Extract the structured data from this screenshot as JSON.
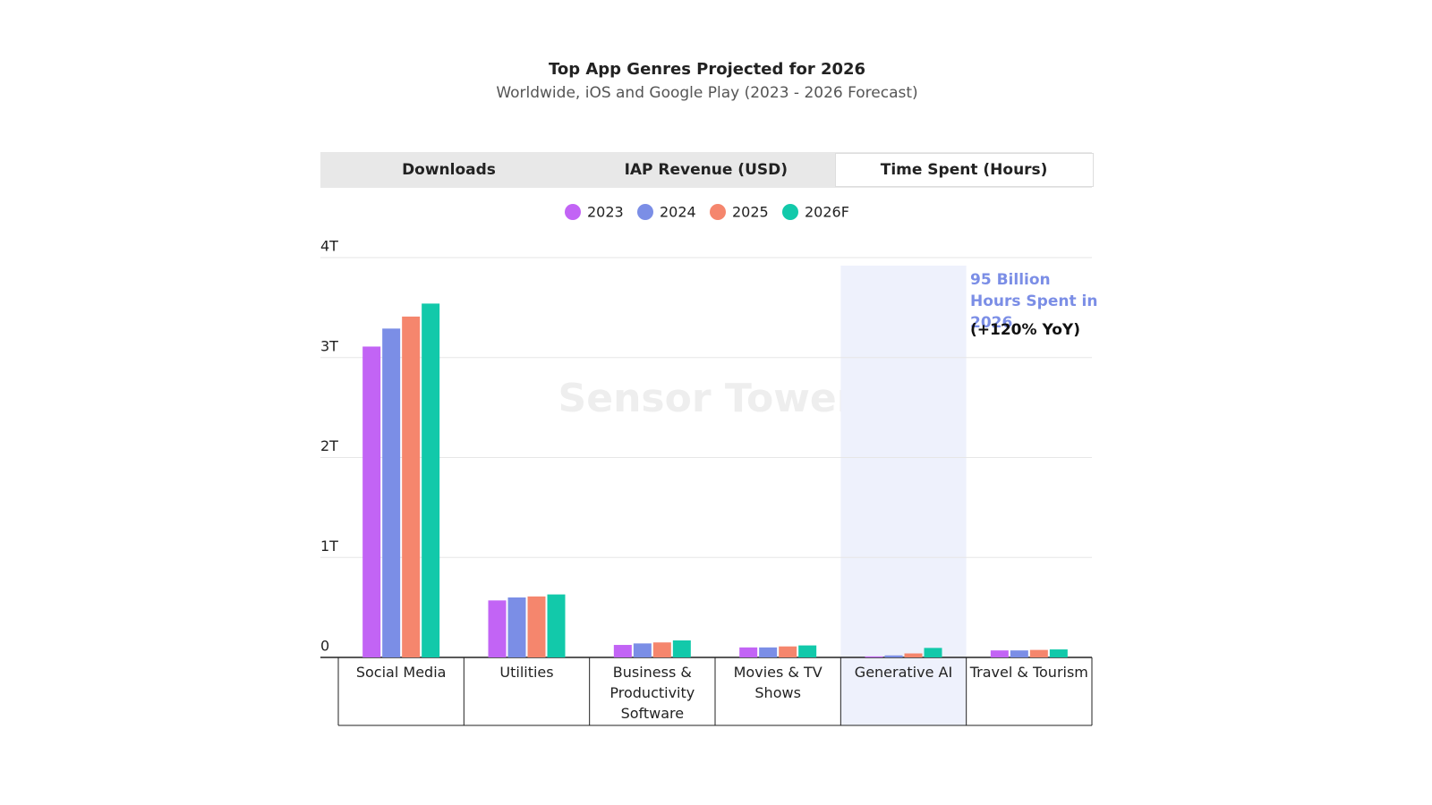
{
  "tabs": {
    "items": [
      "Downloads",
      "IAP Revenue (USD)",
      "Time Spent (Hours)"
    ],
    "active": 2
  },
  "watermark": "Sensor Tower",
  "chart_data": {
    "type": "bar",
    "title": "Top App Genres Projected for 2026",
    "subtitle": "Worldwide, iOS and Google Play (2023 - 2026 Forecast)",
    "categories": [
      "Social Media",
      "Utilities",
      "Business & Productivity Software",
      "Movies & TV Shows",
      "Generative AI",
      "Travel & Tourism"
    ],
    "series": [
      {
        "name": "2023",
        "color": "#c264f5",
        "values": [
          3.11,
          0.57,
          0.125,
          0.1,
          0.01,
          0.07
        ]
      },
      {
        "name": "2024",
        "color": "#7b8ee6",
        "values": [
          3.29,
          0.6,
          0.14,
          0.1,
          0.02,
          0.07
        ]
      },
      {
        "name": "2025",
        "color": "#f5866d",
        "values": [
          3.41,
          0.61,
          0.15,
          0.11,
          0.04,
          0.075
        ]
      },
      {
        "name": "2026F",
        "color": "#12c9aa",
        "values": [
          3.54,
          0.63,
          0.17,
          0.12,
          0.095,
          0.08
        ]
      }
    ],
    "ylim": [
      0,
      4
    ],
    "yticks": [
      0,
      {
        "value": 1,
        "label": "1T"
      },
      {
        "value": 2,
        "label": "2T"
      },
      {
        "value": 3,
        "label": "3T"
      },
      {
        "value": 4,
        "label": "4T"
      }
    ],
    "grid": true,
    "highlight": 4,
    "annotations": [
      "95 Billion Hours Spent in 2026",
      "(+120% YoY)"
    ]
  }
}
